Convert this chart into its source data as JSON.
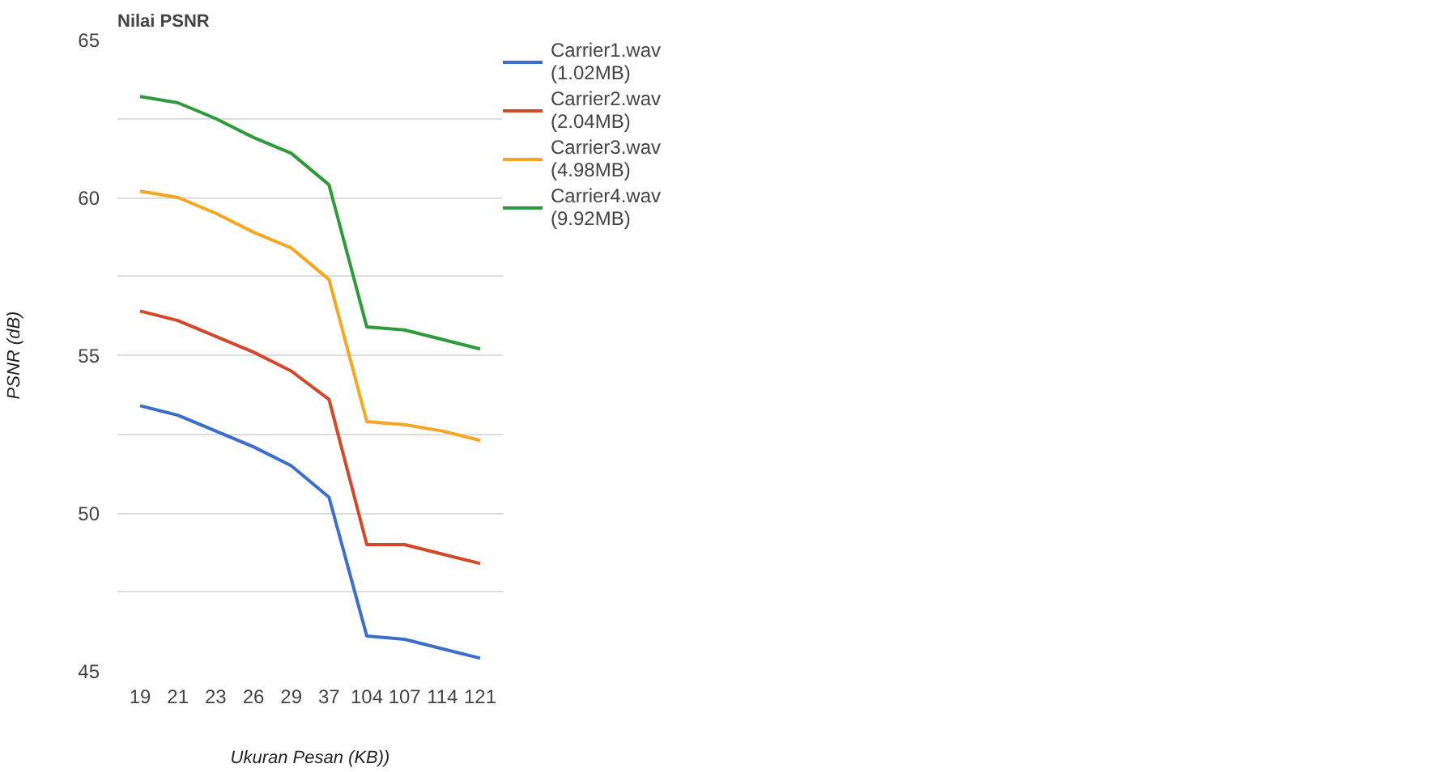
{
  "chart_data": {
    "type": "line",
    "title": "Nilai PSNR",
    "xlabel": "Ukuran Pesan (KB))",
    "ylabel": "PSNR (dB)",
    "categories": [
      "19",
      "21",
      "23",
      "26",
      "29",
      "37",
      "104",
      "107",
      "114",
      "121"
    ],
    "series": [
      {
        "name": "Carrier1.wav (1.02MB)",
        "color": "#3b6fc9",
        "values": [
          53.4,
          53.1,
          52.6,
          52.1,
          51.5,
          50.5,
          46.1,
          46.0,
          45.7,
          45.4
        ]
      },
      {
        "name": "Carrier2.wav (2.04MB)",
        "color": "#d2482b",
        "values": [
          56.4,
          56.1,
          55.6,
          55.1,
          54.5,
          53.6,
          49.0,
          49.0,
          48.7,
          48.4
        ]
      },
      {
        "name": "Carrier3.wav (4.98MB)",
        "color": "#f5a623",
        "values": [
          60.2,
          60.0,
          59.5,
          58.9,
          58.4,
          57.4,
          52.9,
          52.8,
          52.6,
          52.3
        ]
      },
      {
        "name": "Carrier4.wav (9.92MB)",
        "color": "#2e9a3c",
        "values": [
          63.2,
          63.0,
          62.5,
          61.9,
          61.4,
          60.4,
          55.9,
          55.8,
          55.5,
          55.2
        ]
      }
    ],
    "ylim": [
      45,
      65
    ],
    "yticks": [
      45,
      {
        "value": 47.5,
        "label": null
      },
      50,
      {
        "value": 52.5,
        "label": null
      },
      55,
      {
        "value": 57.5,
        "label": null
      },
      60,
      {
        "value": 62.5,
        "label": null
      },
      65
    ],
    "grid": "y",
    "legend": "top right",
    "marker": "none",
    "line_style": "solid"
  }
}
